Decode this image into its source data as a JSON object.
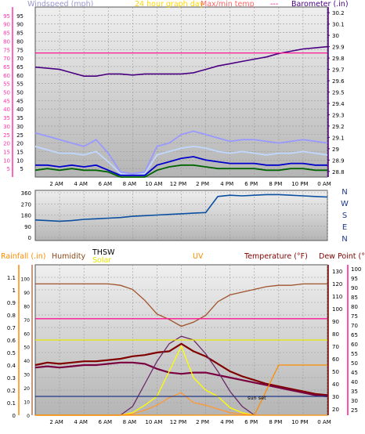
{
  "chart_data": [
    {
      "type": "line",
      "title": "24 hour graph day",
      "left_axis": {
        "label": "Windspeed (mph)",
        "ticks": [
          5,
          10,
          15,
          20,
          25,
          30,
          35,
          40,
          45,
          50,
          55,
          60,
          65,
          70,
          75,
          80,
          85,
          90,
          95
        ],
        "range": [
          0,
          100
        ],
        "secondary_ticks": [
          25,
          30,
          35,
          40,
          45
        ],
        "color": "#ff33aa"
      },
      "right_axis": {
        "label": "Barometer (.in)",
        "ticks": [
          28.8,
          28.9,
          29.0,
          29.1,
          29.2,
          29.3,
          29.4,
          29.5,
          29.6,
          29.7,
          29.8,
          29.9,
          30.0,
          30.1,
          30.2
        ],
        "labels": [
          "28.8",
          "28.9",
          "29",
          "29.1",
          "29.2",
          "29.3",
          "29.4",
          "29.5",
          "29.6",
          "29.7",
          "29.8",
          "29.9",
          "30",
          "30.1",
          "30.2"
        ],
        "range": [
          28.75,
          30.25
        ]
      },
      "extra_legend": {
        "label": "Max/min temp",
        "suffix": "---"
      },
      "x_ticks": [
        "2 AM",
        "4 AM",
        "6 AM",
        "8 AM",
        "10 AM",
        "12 PM",
        "2 PM",
        "4 PM",
        "6 PM",
        "8 PM",
        "10 PM",
        "0 AM"
      ],
      "x": [
        0,
        1,
        2,
        3,
        4,
        5,
        6,
        7,
        8,
        9,
        10,
        11,
        12,
        13,
        14,
        15,
        16,
        17,
        18,
        19,
        20,
        21,
        22,
        23,
        24
      ],
      "series": [
        {
          "key": "barometer",
          "axis": "right",
          "color": "#4b0082",
          "values": [
            29.72,
            29.71,
            29.7,
            29.67,
            29.64,
            29.64,
            29.66,
            29.66,
            29.65,
            29.66,
            29.66,
            29.66,
            29.66,
            29.67,
            29.7,
            29.73,
            29.75,
            29.77,
            29.79,
            29.81,
            29.84,
            29.86,
            29.88,
            29.89,
            29.9
          ]
        },
        {
          "key": "temp-line",
          "axis": "left",
          "color": "#ff1493",
          "values": [
            73,
            73,
            73,
            73,
            73,
            73,
            73,
            73,
            73,
            73,
            73,
            73,
            73,
            73,
            73,
            73,
            73,
            73,
            73,
            73,
            73,
            73,
            73,
            73,
            73
          ]
        },
        {
          "key": "wind-gust-max",
          "axis": "left",
          "color": "#9999ff",
          "values": [
            26,
            24,
            22,
            20,
            18,
            22,
            14,
            3,
            2,
            3,
            18,
            20,
            25,
            27,
            25,
            23,
            21,
            22,
            22,
            21,
            20,
            21,
            22,
            21,
            20
          ]
        },
        {
          "key": "wind-gust",
          "axis": "left",
          "color": "#c0d8ff",
          "values": [
            18,
            16,
            14,
            14,
            13,
            15,
            9,
            2,
            1,
            2,
            13,
            15,
            17,
            18,
            17,
            15,
            14,
            15,
            14,
            13,
            14,
            14,
            15,
            14,
            13
          ]
        },
        {
          "key": "wind-avg",
          "axis": "left",
          "color": "#0000cc",
          "values": [
            7,
            7,
            6,
            7,
            6,
            7,
            4,
            1,
            1,
            1,
            7,
            9,
            11,
            12,
            10,
            9,
            8,
            8,
            8,
            7,
            7,
            8,
            8,
            7,
            7
          ]
        },
        {
          "key": "wind-speed",
          "axis": "left",
          "color": "#006400",
          "values": [
            4,
            5,
            4,
            5,
            4,
            4,
            3,
            0,
            0,
            0,
            4,
            6,
            7,
            7,
            6,
            5,
            5,
            5,
            5,
            4,
            4,
            5,
            5,
            4,
            4
          ]
        }
      ]
    },
    {
      "type": "line",
      "left_axis": {
        "ticks": [
          0,
          90,
          180,
          270,
          360
        ],
        "labels": [
          "0",
          "90",
          "180",
          "270",
          "360"
        ],
        "range": [
          0,
          360
        ]
      },
      "right_axis": {
        "labels": [
          "N",
          "W",
          "S",
          "E",
          "N"
        ]
      },
      "x_ticks": [
        "2 AM",
        "4 AM",
        "6 AM",
        "8 AM",
        "10 AM",
        "12 PM",
        "2 PM",
        "4 PM",
        "6 PM",
        "8 PM",
        "10 PM",
        "0 AM"
      ],
      "x": [
        0,
        1,
        2,
        3,
        4,
        5,
        6,
        7,
        8,
        9,
        10,
        11,
        12,
        13,
        14,
        15,
        16,
        17,
        18,
        19,
        20,
        21,
        22,
        23,
        24
      ],
      "series": [
        {
          "key": "wind-direction",
          "color": "#0a4fa0",
          "values": [
            140,
            135,
            130,
            135,
            145,
            150,
            155,
            160,
            170,
            175,
            180,
            185,
            190,
            195,
            200,
            330,
            340,
            335,
            340,
            345,
            345,
            340,
            335,
            330,
            325
          ]
        }
      ]
    },
    {
      "type": "line",
      "left_axis": {
        "label": "Rainfall (.in)",
        "ticks": [
          0,
          0.1,
          0.2,
          0.3,
          0.4,
          0.5,
          0.6,
          0.7,
          0.8,
          0.9,
          1.0,
          1.1
        ],
        "labels": [
          "0",
          "0.1",
          "0.2",
          "0.3",
          "0.4",
          "0.5",
          "0.6",
          "0.7",
          "0.8",
          "0.9",
          "1",
          "1.1"
        ],
        "range": [
          0,
          1.2
        ]
      },
      "mid_axis": {
        "label": "Humidity",
        "ticks": [
          0,
          10,
          20,
          30,
          40,
          50,
          60,
          70,
          80,
          90,
          100
        ],
        "range": [
          0,
          110
        ]
      },
      "solar_label": "Solar",
      "thsw_label": "THSW",
      "uv_label": "UV",
      "right_axis": {
        "label": "Temperature (°F)",
        "ticks": [
          20,
          30,
          40,
          50,
          60,
          70,
          80,
          90,
          100,
          110,
          120,
          130
        ],
        "range": [
          15,
          135
        ]
      },
      "far_right_axis": {
        "label": "Dew Point (°F)",
        "ticks": [
          25,
          30,
          35,
          40,
          45,
          50,
          55,
          60,
          65,
          70,
          75,
          80,
          85,
          90,
          95,
          100
        ],
        "range": [
          22,
          102
        ]
      },
      "annotation": "sun set",
      "x_ticks": [
        "2 AM",
        "4 AM",
        "6 AM",
        "8 AM",
        "10 AM",
        "12 PM",
        "2 PM",
        "4 PM",
        "6 PM",
        "8 PM",
        "10 PM",
        "0 AM"
      ],
      "x": [
        0,
        1,
        2,
        3,
        4,
        5,
        6,
        7,
        8,
        9,
        10,
        11,
        12,
        13,
        14,
        15,
        16,
        17,
        18,
        19,
        20,
        21,
        22,
        23,
        24
      ],
      "series": [
        {
          "key": "humidity",
          "axis": "mid",
          "color": "#a0522d",
          "values": [
            96,
            96,
            96,
            96,
            96,
            96,
            96,
            95,
            92,
            84,
            74,
            70,
            65,
            68,
            73,
            83,
            88,
            90,
            92,
            94,
            95,
            95,
            96,
            96,
            96
          ]
        },
        {
          "key": "temperature",
          "axis": "right",
          "color": "#800000",
          "values": [
            55,
            57,
            56,
            57,
            58,
            58,
            59,
            60,
            62,
            63,
            65,
            66,
            72,
            66,
            62,
            56,
            50,
            46,
            43,
            40,
            38,
            36,
            34,
            32,
            31
          ]
        },
        {
          "key": "dew-point",
          "axis": "right",
          "color": "#7a0040",
          "values": [
            53,
            54,
            53,
            54,
            55,
            55,
            56,
            57,
            57,
            56,
            52,
            49,
            48,
            49,
            49,
            47,
            45,
            43,
            41,
            39,
            37,
            35,
            33,
            31,
            30
          ]
        },
        {
          "key": "thsw",
          "axis": "right",
          "color": "#6a2a6a",
          "values": [
            15,
            15,
            15,
            15,
            15,
            15,
            15,
            15,
            22,
            40,
            58,
            72,
            78,
            75,
            64,
            50,
            34,
            22,
            15,
            15,
            15,
            15,
            15,
            15,
            15
          ]
        },
        {
          "key": "solar",
          "axis": "left",
          "color": "#ffff00",
          "values": [
            0,
            0,
            0,
            0,
            0,
            0,
            0,
            0,
            0.02,
            0.08,
            0.15,
            0.35,
            0.55,
            0.3,
            0.2,
            0.15,
            0.06,
            0.02,
            0,
            0,
            0,
            0,
            0,
            0,
            0
          ]
        },
        {
          "key": "uv",
          "axis": "left",
          "color": "#ff9933",
          "values": [
            0,
            0,
            0,
            0,
            0,
            0,
            0,
            0,
            0.01,
            0.04,
            0.08,
            0.14,
            0.18,
            0.1,
            0.08,
            0.05,
            0.02,
            0.01,
            0,
            0,
            0,
            0,
            0,
            0,
            0
          ]
        },
        {
          "key": "rain-box",
          "axis": "left",
          "color": "#ff8c00",
          "values": [
            0,
            0,
            0,
            0,
            0,
            0,
            0,
            0,
            0,
            0,
            0,
            0,
            0,
            0,
            0,
            0,
            0,
            0,
            0,
            0.2,
            0.4,
            0.4,
            0.4,
            0.4,
            0.4
          ]
        },
        {
          "key": "daily-rain",
          "axis": "left",
          "color": "#1f3a8a",
          "values": [
            0.15,
            0.15,
            0.15,
            0.15,
            0.15,
            0.15,
            0.15,
            0.15,
            0.15,
            0.15,
            0.15,
            0.15,
            0.15,
            0.15,
            0.15,
            0.15,
            0.15,
            0.15,
            0.15,
            0.15,
            0.15,
            0.15,
            0.15,
            0.15,
            0.15
          ]
        },
        {
          "key": "temp-line-2",
          "axis": "right",
          "color": "#ff1493",
          "values": [
            92,
            92,
            92,
            92,
            92,
            92,
            92,
            92,
            92,
            92,
            92,
            92,
            92,
            92,
            92,
            92,
            92,
            92,
            92,
            92,
            92,
            92,
            92,
            92,
            92
          ]
        },
        {
          "key": "high-line",
          "axis": "left",
          "color": "#e6e600",
          "values": [
            0.6,
            0.6,
            0.6,
            0.6,
            0.6,
            0.6,
            0.6,
            0.6,
            0.6,
            0.6,
            0.6,
            0.6,
            0.6,
            0.6,
            0.6,
            0.6,
            0.6,
            0.6,
            0.6,
            0.6,
            0.6,
            0.6,
            0.6,
            0.6,
            0.6
          ]
        }
      ]
    }
  ]
}
